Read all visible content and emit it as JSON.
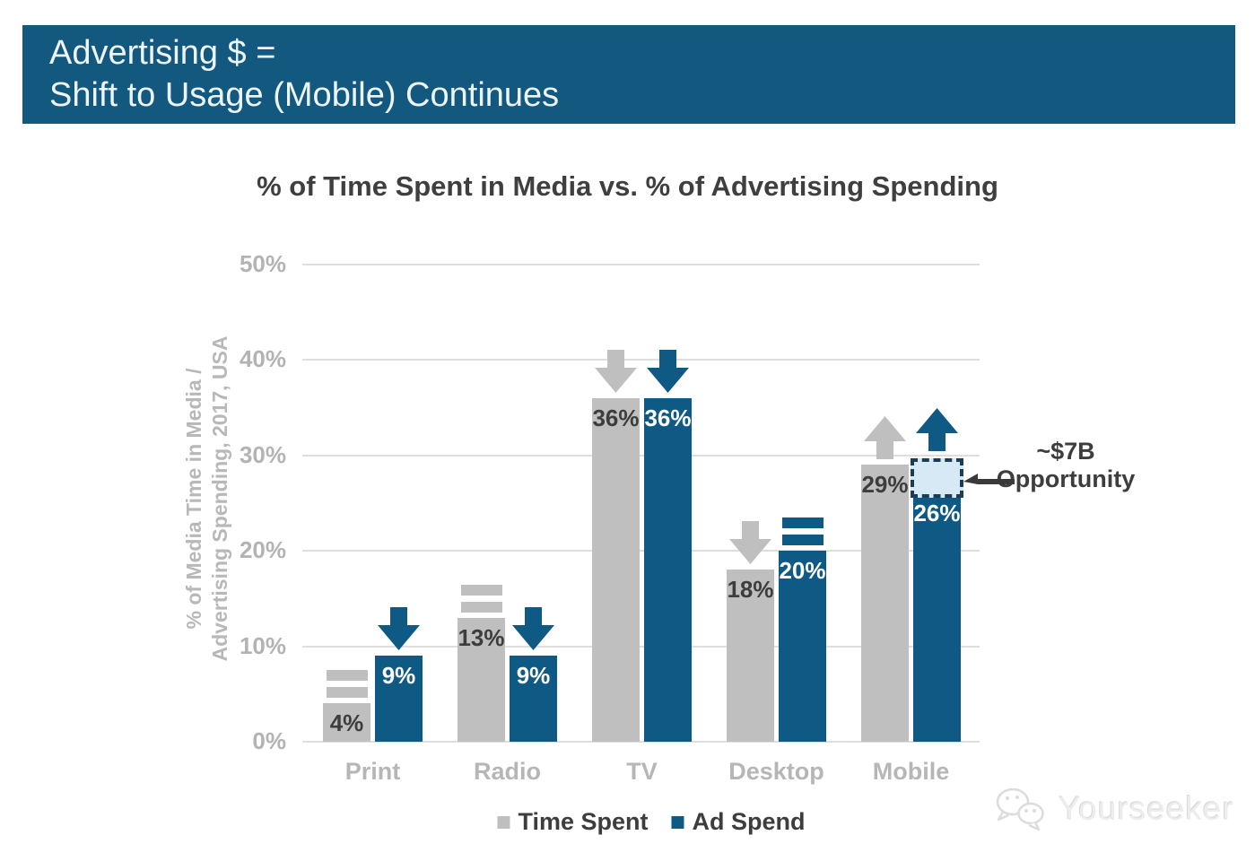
{
  "header": {
    "line1": "Advertising $ =",
    "line2": "Shift to Usage (Mobile) Continues"
  },
  "chart_data": {
    "type": "bar",
    "title": "% of Time Spent in Media vs. % of Advertising Spending",
    "ylabel": {
      "line1": "% of Media Time in Media /",
      "line2": "Advertising Spending, 2017, USA"
    },
    "categories": [
      "Print",
      "Radio",
      "TV",
      "Desktop",
      "Mobile"
    ],
    "series": [
      {
        "name": "Time Spent",
        "color": "#bfbfbf",
        "label_color": "#3d3d3d",
        "values": [
          4,
          13,
          36,
          18,
          29
        ],
        "trends": [
          "flat",
          "flat",
          "down",
          "down",
          "up"
        ]
      },
      {
        "name": "Ad Spend",
        "color": "#0f5a84",
        "label_color": "#ffffff",
        "values": [
          9,
          9,
          36,
          20,
          26
        ],
        "trends": [
          "down",
          "down",
          "down",
          "flat",
          "up"
        ]
      }
    ],
    "y_axis": {
      "ticks": [
        50,
        40,
        30,
        20,
        10,
        0
      ],
      "tick_suffix": "%",
      "ylim": [
        0,
        50
      ],
      "grid": true
    },
    "legend_position": "bottom",
    "annotation": {
      "line1": "~$7B",
      "line2": "Opportunity",
      "category": "Mobile",
      "series": "Ad Spend",
      "box_from_pct": 26,
      "box_to_pct": 29.7,
      "box_fill": "#d6e9f5",
      "box_border": "#1d3c55"
    }
  },
  "watermark": {
    "text": "Yourseeker",
    "icon": "wechat-icon"
  },
  "colors": {
    "banner_bg": "#13587e",
    "banner_text": "#eef5f9",
    "title_text": "#3f3f3f",
    "axis_text": "#b3b3b3",
    "grid": "#dedede",
    "annotation_text": "#3d3d3d",
    "legend_text": "#3d3d3d",
    "arrow_dark": "#3a3a3a"
  }
}
